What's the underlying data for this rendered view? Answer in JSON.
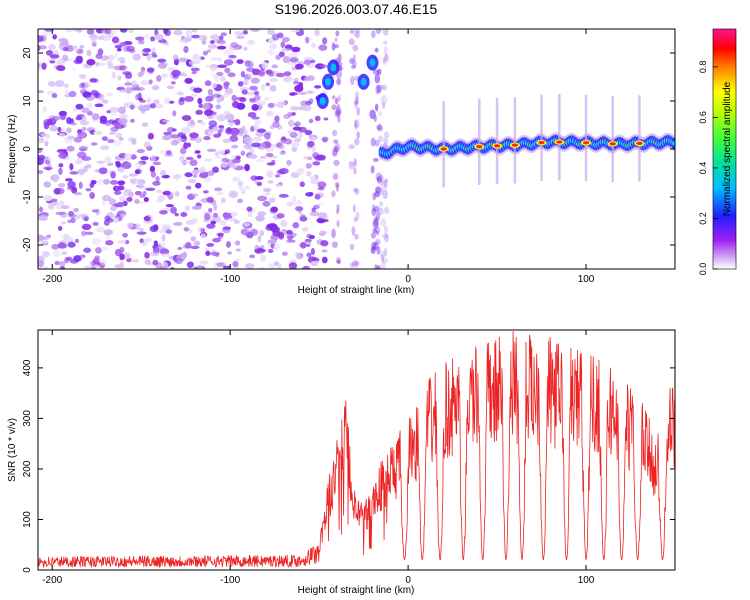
{
  "figure": {
    "title": "S196.2026.003.07.46.E15"
  },
  "chart_data": [
    {
      "type": "heatmap",
      "xlabel": "Height of straight line (km)",
      "ylabel": "Frequency (Hz)",
      "xlim": [
        -208,
        150
      ],
      "ylim": [
        -25,
        25
      ],
      "xticks": [
        -200,
        -100,
        0,
        100
      ],
      "yticks": [
        -20,
        -10,
        0,
        10,
        20
      ],
      "colorbar": {
        "label": "Normalized spectral amplitude",
        "range": [
          0,
          0.95
        ],
        "ticks": [
          0.0,
          0.2,
          0.4,
          0.6,
          0.8
        ],
        "colormap": "rainbow",
        "colors": [
          "#a020f0",
          "#0000ff",
          "#00bfff",
          "#00ff7f",
          "#7fff00",
          "#ffff00",
          "#ff8000",
          "#ff0000",
          "#ff1493"
        ]
      },
      "noise_region_x": [
        -208,
        -50
      ],
      "signal": {
        "x_start": -15,
        "x_end": 150,
        "frequency": [
          {
            "x": -15,
            "y": -1
          },
          {
            "x": 0,
            "y": 0.5
          },
          {
            "x": 20,
            "y": 0
          },
          {
            "x": 40,
            "y": 0.5
          },
          {
            "x": 60,
            "y": 0.8
          },
          {
            "x": 80,
            "y": 1.5
          },
          {
            "x": 100,
            "y": 1.3
          },
          {
            "x": 120,
            "y": 1
          },
          {
            "x": 150,
            "y": 1.5
          }
        ],
        "peaks_x": [
          20,
          40,
          50,
          60,
          75,
          85,
          100,
          115,
          130
        ]
      },
      "early_feature": [
        {
          "x": -48,
          "y": 10
        },
        {
          "x": -45,
          "y": 14
        },
        {
          "x": -42,
          "y": 17
        },
        {
          "x": -25,
          "y": 14
        },
        {
          "x": -20,
          "y": 18
        }
      ],
      "colors": {
        "noise": "#8a2be2",
        "noise_light": "#c8a8f0"
      }
    },
    {
      "type": "line",
      "xlabel": "Height of straight line (km)",
      "ylabel": "SNR (10 * v/v)",
      "xlim": [
        -208,
        150
      ],
      "ylim": [
        0,
        475
      ],
      "xticks": [
        -200,
        -100,
        0,
        100
      ],
      "yticks": [
        0,
        100,
        200,
        300,
        400
      ],
      "series": [
        {
          "color": "#ee2222",
          "baseline": [
            {
              "x": -208,
              "y": 18
            },
            {
              "x": -60,
              "y": 20
            },
            {
              "x": -50,
              "y": 40
            }
          ],
          "envelope": [
            {
              "x": -50,
              "y": 50
            },
            {
              "x": -45,
              "y": 170
            },
            {
              "x": -35,
              "y": 330
            },
            {
              "x": -30,
              "y": 150
            },
            {
              "x": -25,
              "y": 120
            },
            {
              "x": -15,
              "y": 210
            },
            {
              "x": -5,
              "y": 260
            },
            {
              "x": 5,
              "y": 320
            },
            {
              "x": 15,
              "y": 380
            },
            {
              "x": 30,
              "y": 410
            },
            {
              "x": 50,
              "y": 440
            },
            {
              "x": 60,
              "y": 455
            },
            {
              "x": 80,
              "y": 440
            },
            {
              "x": 100,
              "y": 420
            },
            {
              "x": 115,
              "y": 390
            },
            {
              "x": 130,
              "y": 330
            },
            {
              "x": 140,
              "y": 250
            },
            {
              "x": 145,
              "y": 340
            },
            {
              "x": 150,
              "y": 350
            }
          ],
          "dropouts_x": [
            -2,
            8,
            18,
            31,
            42,
            55,
            64,
            76,
            89,
            100,
            110,
            120,
            129,
            143
          ],
          "dropout_min": 20
        }
      ]
    }
  ]
}
